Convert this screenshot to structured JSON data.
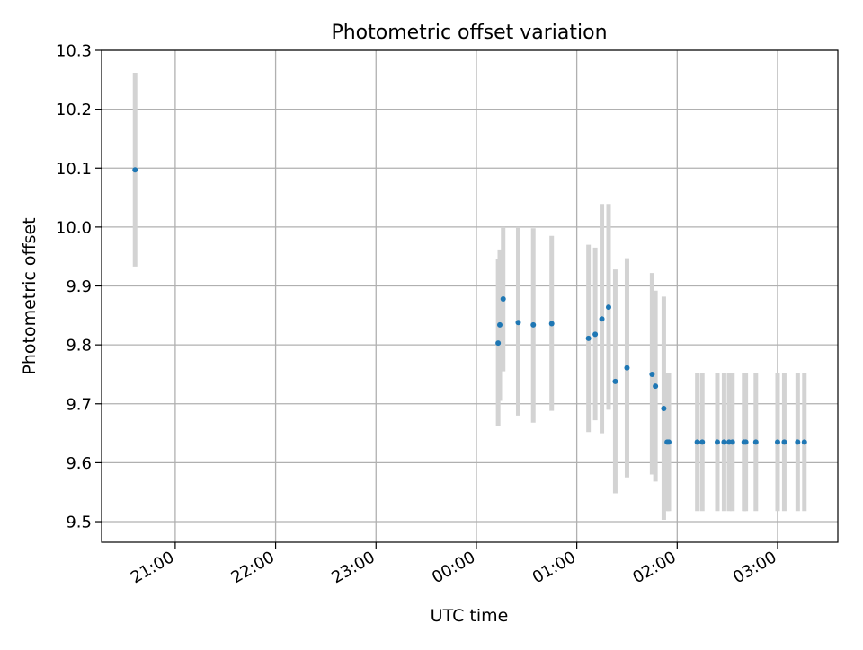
{
  "colors": {
    "point": "#1f77b4",
    "errorbar": "#d3d3d3",
    "grid": "#b0b0b0",
    "axis": "#000000"
  },
  "chart_data": {
    "type": "scatter",
    "title": "Photometric offset variation",
    "xlabel": "UTC time",
    "ylabel": "Photometric offset",
    "grid": true,
    "x_axis_type": "time",
    "xlim": [
      "20:16",
      "03:36"
    ],
    "ylim": [
      9.465,
      10.3
    ],
    "x_ticks": [
      "21:00",
      "22:00",
      "23:00",
      "00:00",
      "01:00",
      "02:00",
      "03:00"
    ],
    "y_ticks": [
      "9.5",
      "9.6",
      "9.7",
      "9.8",
      "9.9",
      "10.0",
      "10.1",
      "10.2",
      "10.3"
    ],
    "series": [
      {
        "points": [
          {
            "x": "20:36",
            "y": 10.097,
            "low": 9.933,
            "high": 10.262
          },
          {
            "x": "00:13",
            "y": 9.803,
            "low": 9.663,
            "high": 9.945
          },
          {
            "x": "00:14",
            "y": 9.834,
            "low": 9.705,
            "high": 9.962
          },
          {
            "x": "00:16",
            "y": 9.878,
            "low": 9.755,
            "high": 10.0
          },
          {
            "x": "00:25",
            "y": 9.838,
            "low": 9.68,
            "high": 10.0
          },
          {
            "x": "00:34",
            "y": 9.834,
            "low": 9.668,
            "high": 9.998
          },
          {
            "x": "00:45",
            "y": 9.836,
            "low": 9.688,
            "high": 9.985
          },
          {
            "x": "01:07",
            "y": 9.811,
            "low": 9.652,
            "high": 9.97
          },
          {
            "x": "01:11",
            "y": 9.818,
            "low": 9.672,
            "high": 9.965
          },
          {
            "x": "01:15",
            "y": 9.844,
            "low": 9.65,
            "high": 10.039
          },
          {
            "x": "01:19",
            "y": 9.864,
            "low": 9.69,
            "high": 10.039
          },
          {
            "x": "01:23",
            "y": 9.738,
            "low": 9.548,
            "high": 9.928
          },
          {
            "x": "01:30",
            "y": 9.761,
            "low": 9.575,
            "high": 9.947
          },
          {
            "x": "01:45",
            "y": 9.75,
            "low": 9.58,
            "high": 9.922
          },
          {
            "x": "01:47",
            "y": 9.73,
            "low": 9.568,
            "high": 9.892
          },
          {
            "x": "01:52",
            "y": 9.692,
            "low": 9.503,
            "high": 9.882
          },
          {
            "x": "01:54",
            "y": 9.635,
            "low": 9.518,
            "high": 9.752
          },
          {
            "x": "01:55",
            "y": 9.635,
            "low": 9.518,
            "high": 9.752
          },
          {
            "x": "02:12",
            "y": 9.635,
            "low": 9.518,
            "high": 9.752
          },
          {
            "x": "02:15",
            "y": 9.635,
            "low": 9.518,
            "high": 9.752
          },
          {
            "x": "02:24",
            "y": 9.635,
            "low": 9.518,
            "high": 9.752
          },
          {
            "x": "02:28",
            "y": 9.635,
            "low": 9.518,
            "high": 9.752
          },
          {
            "x": "02:31",
            "y": 9.635,
            "low": 9.518,
            "high": 9.752
          },
          {
            "x": "02:33",
            "y": 9.635,
            "low": 9.518,
            "high": 9.752
          },
          {
            "x": "02:40",
            "y": 9.635,
            "low": 9.518,
            "high": 9.752
          },
          {
            "x": "02:41",
            "y": 9.635,
            "low": 9.518,
            "high": 9.752
          },
          {
            "x": "02:47",
            "y": 9.635,
            "low": 9.518,
            "high": 9.752
          },
          {
            "x": "03:00",
            "y": 9.635,
            "low": 9.518,
            "high": 9.752
          },
          {
            "x": "03:04",
            "y": 9.635,
            "low": 9.518,
            "high": 9.752
          },
          {
            "x": "03:12",
            "y": 9.635,
            "low": 9.518,
            "high": 9.752
          },
          {
            "x": "03:16",
            "y": 9.635,
            "low": 9.518,
            "high": 9.752
          }
        ]
      }
    ]
  }
}
